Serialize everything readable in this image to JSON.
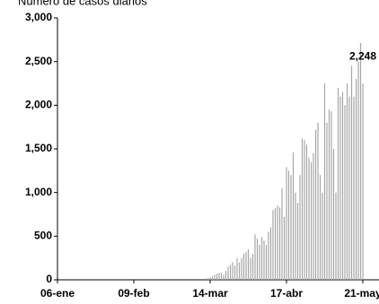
{
  "chart_data": {
    "type": "bar",
    "title": "Número de casos diarios",
    "categories": [
      "06-ene",
      null,
      null,
      null,
      null,
      null,
      null,
      null,
      null,
      null,
      null,
      null,
      null,
      null,
      null,
      null,
      null,
      null,
      null,
      null,
      null,
      null,
      null,
      null,
      null,
      null,
      null,
      null,
      null,
      null,
      null,
      null,
      null,
      null,
      "09-feb",
      null,
      null,
      null,
      null,
      null,
      null,
      null,
      null,
      null,
      null,
      null,
      null,
      null,
      null,
      null,
      null,
      null,
      null,
      null,
      null,
      null,
      null,
      null,
      null,
      null,
      null,
      null,
      null,
      null,
      null,
      null,
      null,
      null,
      "14-mar",
      null,
      null,
      null,
      null,
      null,
      null,
      null,
      null,
      null,
      null,
      null,
      null,
      null,
      null,
      null,
      null,
      null,
      null,
      null,
      null,
      null,
      null,
      null,
      null,
      null,
      null,
      null,
      null,
      null,
      null,
      null,
      null,
      null,
      "17-abr",
      null,
      null,
      null,
      null,
      null,
      null,
      null,
      null,
      null,
      null,
      null,
      null,
      null,
      null,
      null,
      null,
      null,
      null,
      null,
      null,
      null,
      null,
      null,
      null,
      null,
      null,
      null,
      null,
      null,
      null,
      null,
      null,
      null,
      "21-may"
    ],
    "values": [
      0,
      0,
      0,
      0,
      0,
      0,
      0,
      0,
      0,
      0,
      0,
      0,
      0,
      0,
      0,
      0,
      0,
      0,
      0,
      0,
      0,
      0,
      0,
      0,
      0,
      0,
      0,
      0,
      0,
      0,
      0,
      0,
      0,
      0,
      0,
      0,
      0,
      0,
      0,
      0,
      0,
      0,
      0,
      0,
      0,
      0,
      0,
      0,
      0,
      0,
      0,
      0,
      0,
      0,
      0,
      0,
      0,
      0,
      0,
      0,
      0,
      0,
      0,
      0,
      0,
      0,
      0,
      20,
      30,
      40,
      60,
      70,
      80,
      80,
      60,
      100,
      150,
      170,
      200,
      160,
      250,
      200,
      250,
      300,
      320,
      350,
      250,
      300,
      520,
      470,
      400,
      490,
      450,
      400,
      550,
      600,
      800,
      820,
      850,
      830,
      1050,
      720,
      1290,
      1250,
      1200,
      1460,
      1000,
      880,
      1200,
      1620,
      1600,
      1550,
      1400,
      1350,
      1450,
      1720,
      1800,
      1200,
      1000,
      2250,
      1800,
      1950,
      1930,
      1500,
      1000,
      2200,
      2100,
      2150,
      2000,
      2250,
      2100,
      2450,
      2100,
      2300,
      2500,
      2713,
      2248
    ],
    "value_labels": [
      null,
      null,
      null,
      null,
      null,
      null,
      null,
      null,
      null,
      null,
      null,
      null,
      null,
      null,
      null,
      null,
      null,
      null,
      null,
      null,
      null,
      null,
      null,
      null,
      null,
      null,
      null,
      null,
      null,
      null,
      null,
      null,
      null,
      null,
      null,
      null,
      null,
      null,
      null,
      null,
      null,
      null,
      null,
      null,
      null,
      null,
      null,
      null,
      null,
      null,
      null,
      null,
      null,
      null,
      null,
      null,
      null,
      null,
      null,
      null,
      null,
      null,
      null,
      null,
      null,
      null,
      null,
      null,
      null,
      null,
      null,
      null,
      null,
      null,
      null,
      null,
      null,
      null,
      null,
      null,
      null,
      null,
      null,
      null,
      null,
      null,
      null,
      null,
      null,
      null,
      null,
      null,
      null,
      null,
      null,
      null,
      null,
      null,
      null,
      null,
      null,
      null,
      null,
      null,
      null,
      null,
      null,
      null,
      null,
      null,
      null,
      null,
      null,
      null,
      null,
      null,
      null,
      null,
      null,
      null,
      null,
      null,
      null,
      null,
      null,
      null,
      null,
      null,
      null,
      null,
      null,
      null,
      null,
      null,
      null,
      null,
      "2,248"
    ],
    "color": "#a6a6a6",
    "ylim": [
      0,
      3000
    ],
    "yticks": [
      0,
      500,
      {
        "value": 1000,
        "label": "1,000"
      },
      {
        "value": 1500,
        "label": "1,500"
      },
      {
        "value": 2000,
        "label": "2,000"
      },
      {
        "value": 2500,
        "label": "2,500"
      },
      {
        "value": 3000,
        "label": "3,000"
      }
    ]
  }
}
